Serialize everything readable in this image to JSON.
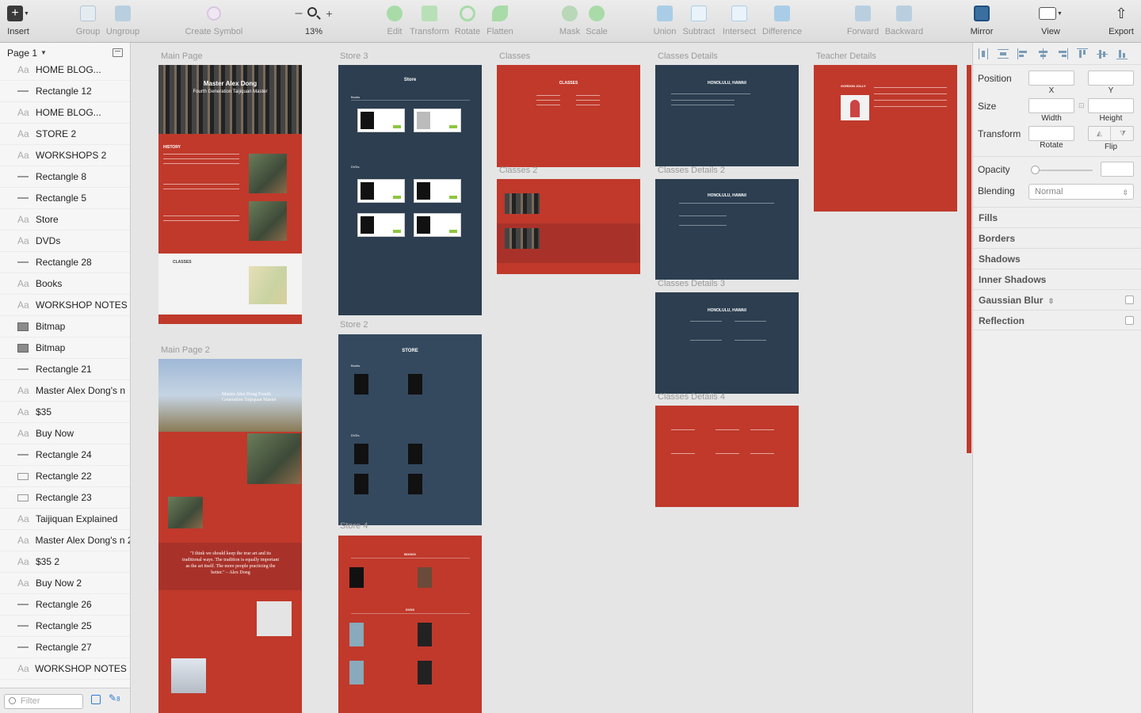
{
  "toolbar": {
    "insert": "Insert",
    "group": "Group",
    "ungroup": "Ungroup",
    "create_symbol": "Create Symbol",
    "zoom_minus": "–",
    "zoom_plus": "+",
    "zoom_level": "13%",
    "edit": "Edit",
    "transform": "Transform",
    "rotate": "Rotate",
    "flatten": "Flatten",
    "mask": "Mask",
    "scale": "Scale",
    "union": "Union",
    "subtract": "Subtract",
    "intersect": "Intersect",
    "difference": "Difference",
    "forward": "Forward",
    "backward": "Backward",
    "mirror": "Mirror",
    "view": "View",
    "export": "Export"
  },
  "layers": {
    "page_name": "Page 1",
    "filter_placeholder": "Filter",
    "filter_count": "8",
    "items": [
      {
        "type": "text",
        "name": "HOME     BLOG..."
      },
      {
        "type": "rect",
        "name": "Rectangle 12"
      },
      {
        "type": "text",
        "name": "HOME     BLOG..."
      },
      {
        "type": "text",
        "name": "STORE 2"
      },
      {
        "type": "text",
        "name": "WORKSHOPS 2"
      },
      {
        "type": "rect",
        "name": "Rectangle 8"
      },
      {
        "type": "rect",
        "name": "Rectangle 5"
      },
      {
        "type": "text",
        "name": "Store"
      },
      {
        "type": "text",
        "name": "DVDs"
      },
      {
        "type": "rect",
        "name": "Rectangle 28"
      },
      {
        "type": "text",
        "name": "Books"
      },
      {
        "type": "text",
        "name": "WORKSHOP NOTES"
      },
      {
        "type": "bitmap",
        "name": "Bitmap"
      },
      {
        "type": "bitmap",
        "name": "Bitmap"
      },
      {
        "type": "rect",
        "name": "Rectangle 21"
      },
      {
        "type": "text",
        "name": "Master Alex Dong's n"
      },
      {
        "type": "text",
        "name": "$35"
      },
      {
        "type": "text",
        "name": "Buy Now"
      },
      {
        "type": "rect",
        "name": "Rectangle 24"
      },
      {
        "type": "box",
        "name": "Rectangle 22"
      },
      {
        "type": "box",
        "name": "Rectangle 23"
      },
      {
        "type": "text",
        "name": "Taijiquan Explained"
      },
      {
        "type": "text",
        "name": "Master Alex Dong's n 2"
      },
      {
        "type": "text",
        "name": "$35 2"
      },
      {
        "type": "text",
        "name": "Buy Now 2"
      },
      {
        "type": "rect",
        "name": "Rectangle 26"
      },
      {
        "type": "rect",
        "name": "Rectangle 25"
      },
      {
        "type": "rect",
        "name": "Rectangle 27"
      },
      {
        "type": "text",
        "name": "WORKSHOP NOTES 5"
      }
    ]
  },
  "artboards": {
    "main_page": "Main Page",
    "main_page_2": "Main Page 2",
    "store_3": "Store 3",
    "store_2": "Store 2",
    "store_4": "Store 4",
    "classes": "Classes",
    "classes_2": "Classes 2",
    "classes_details": "Classes Details",
    "classes_details_2": "Classes Details 2",
    "classes_details_3": "Classes Details 3",
    "classes_details_4": "Classes Details 4",
    "teacher_details": "Teacher Details"
  },
  "mock": {
    "main_hero_title": "Master Alex Dong",
    "main_hero_sub": "Fourth Generation Taijiquan Master",
    "history": "HISTORY",
    "classes": "CLASSES",
    "store": "Store",
    "store_upper": "STORE",
    "books": "Books",
    "dvds": "DVDs",
    "books_upper": "BOOKS",
    "dvds_upper": "DVDS",
    "classes_upper": "CLASSES",
    "honolulu": "HONOLULU, HAWAII",
    "teacher": "GORDON JOLLY",
    "main2_title": "Master Alex Dong Fourth Generation Taijiquan Master",
    "quote": "\"I think we should keep the true art and its traditional ways. The tradition is equally important as the art itself. The more people practicing the better.\" – Alex Dong"
  },
  "inspector": {
    "position": "Position",
    "x": "X",
    "y": "Y",
    "size": "Size",
    "width": "Width",
    "height": "Height",
    "transform": "Transform",
    "rotate": "Rotate",
    "flip": "Flip",
    "opacity": "Opacity",
    "blending": "Blending",
    "blending_value": "Normal",
    "fills": "Fills",
    "borders": "Borders",
    "shadows": "Shadows",
    "inner_shadows": "Inner Shadows",
    "gaussian_blur": "Gaussian Blur",
    "reflection": "Reflection"
  },
  "colors": {
    "brand_red": "#c0392b",
    "navy": "#2c3e50",
    "buy_green": "#8dc63f"
  }
}
